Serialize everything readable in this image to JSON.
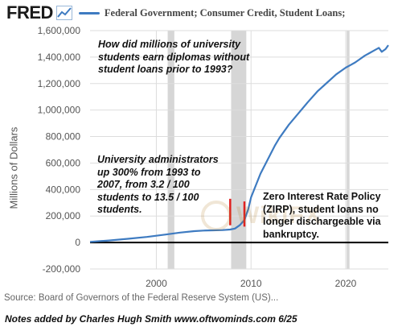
{
  "header": {
    "logo_text": "FRED",
    "logo_icon": "line-chart-icon",
    "legend_label": "Federal Government; Consumer Credit, Student Loans;"
  },
  "colors": {
    "series": "#3e7bc1",
    "recession": "#d6d6d6",
    "grid": "#dddddd",
    "marker": "#e02020",
    "baseline": "#000000"
  },
  "annotations": {
    "question": "How did millions of university students earn diplomas without student loans prior to 1993?",
    "admin": "University administrators up 300% from 1993 to 2007, from 3.2 / 100 students to 13.5 / 100 students.",
    "zirp": "Zero Interest Rate Policy (ZIRP), student loans no longer dischargeable via bankruptcy."
  },
  "source": "Source: Board of Governors of the Federal Reserve System (US)...",
  "footnote": "Notes added by Charles Hugh Smith  www.oftwominds.com  6/25",
  "watermark": "WikiFX",
  "chart_data": {
    "type": "line",
    "ylabel": "Millions of Dollars",
    "xlabel": "",
    "xlim": [
      1993.0,
      2024.5
    ],
    "ylim": [
      -200000,
      1600000
    ],
    "x_ticks": [
      2000,
      2010,
      2020
    ],
    "y_ticks": [
      -200000,
      0,
      200000,
      400000,
      600000,
      800000,
      1000000,
      1200000,
      1400000,
      1600000
    ],
    "y_tick_labels": [
      "-200,000",
      "0",
      "200,000",
      "400,000",
      "600,000",
      "800,000",
      "1,000,000",
      "1,200,000",
      "1,400,000",
      "1,600,000"
    ],
    "x_tick_labels": [
      "2000",
      "2010",
      "2020"
    ],
    "grid": true,
    "recessions": [
      [
        2001.2,
        2001.9
      ],
      [
        2007.9,
        2009.5
      ],
      [
        2020.1,
        2020.4
      ]
    ],
    "markers": [
      {
        "x": 2007.8,
        "y_from": 130000,
        "y_to": 330000
      },
      {
        "x": 2009.3,
        "y_from": 120000,
        "y_to": 310000
      }
    ],
    "baseline_y": 0,
    "series": [
      {
        "name": "Federal Government; Consumer Credit, Student Loans;",
        "x": [
          1993.0,
          1995.0,
          1997.0,
          1999.0,
          2001.0,
          2002.5,
          2004.0,
          2005.0,
          2006.0,
          2007.0,
          2007.8,
          2008.3,
          2008.8,
          2009.3,
          2009.7,
          2010.0,
          2010.5,
          2011.0,
          2011.5,
          2012.0,
          2012.5,
          2013.0,
          2014.0,
          2015.0,
          2016.0,
          2017.0,
          2018.0,
          2019.0,
          2020.0,
          2020.5,
          2021.0,
          2021.5,
          2022.0,
          2022.5,
          2023.0,
          2023.5,
          2023.8,
          2024.2,
          2024.5
        ],
        "y": [
          5000,
          15000,
          28000,
          42000,
          60000,
          75000,
          86000,
          90000,
          92000,
          94000,
          98000,
          105000,
          130000,
          170000,
          250000,
          340000,
          430000,
          520000,
          590000,
          660000,
          730000,
          790000,
          890000,
          975000,
          1060000,
          1140000,
          1205000,
          1270000,
          1320000,
          1340000,
          1360000,
          1385000,
          1410000,
          1430000,
          1450000,
          1470000,
          1440000,
          1460000,
          1490000
        ]
      }
    ]
  }
}
